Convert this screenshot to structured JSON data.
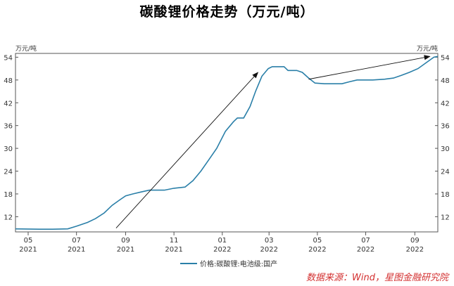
{
  "source": "数据来源：Wind，星图金融研究院",
  "chart_data": {
    "type": "line",
    "title": "碳酸锂价格走势（万元/吨）",
    "unit_left": "万元/吨",
    "unit_right": "万元/吨",
    "ylim": [
      8,
      55
    ],
    "yticks": [
      12,
      18,
      24,
      30,
      36,
      42,
      48,
      54
    ],
    "xlim": [
      "2021-04-15",
      "2022-09-30"
    ],
    "xticks": [
      {
        "date": "2021-05-01",
        "month": "05",
        "year": "2021"
      },
      {
        "date": "2021-07-01",
        "month": "07",
        "year": "2021"
      },
      {
        "date": "2021-09-01",
        "month": "09",
        "year": "2021"
      },
      {
        "date": "2021-11-01",
        "month": "11",
        "year": "2021"
      },
      {
        "date": "2022-01-01",
        "month": "01",
        "year": "2022"
      },
      {
        "date": "2022-03-01",
        "month": "03",
        "year": "2022"
      },
      {
        "date": "2022-05-01",
        "month": "05",
        "year": "2022"
      },
      {
        "date": "2022-07-01",
        "month": "07",
        "year": "2022"
      },
      {
        "date": "2022-09-01",
        "month": "09",
        "year": "2022"
      }
    ],
    "legend_position": "bottom",
    "series": [
      {
        "name": "价格:碳酸锂:电池级:国产",
        "color": "#2a7fa8",
        "points": [
          [
            "2021-04-15",
            8.8
          ],
          [
            "2021-05-15",
            8.7
          ],
          [
            "2021-06-01",
            8.7
          ],
          [
            "2021-06-20",
            8.8
          ],
          [
            "2021-07-01",
            9.5
          ],
          [
            "2021-07-15",
            10.5
          ],
          [
            "2021-07-25",
            11.5
          ],
          [
            "2021-08-05",
            13.0
          ],
          [
            "2021-08-15",
            15.0
          ],
          [
            "2021-08-25",
            16.5
          ],
          [
            "2021-09-01",
            17.5
          ],
          [
            "2021-09-10",
            18.0
          ],
          [
            "2021-09-20",
            18.5
          ],
          [
            "2021-10-01",
            19.0
          ],
          [
            "2021-10-20",
            19.0
          ],
          [
            "2021-11-01",
            19.5
          ],
          [
            "2021-11-15",
            19.8
          ],
          [
            "2021-11-25",
            21.5
          ],
          [
            "2021-12-05",
            24.0
          ],
          [
            "2021-12-15",
            27.0
          ],
          [
            "2021-12-25",
            30.0
          ],
          [
            "2022-01-05",
            34.5
          ],
          [
            "2022-01-15",
            37.0
          ],
          [
            "2022-01-20",
            38.0
          ],
          [
            "2022-01-28",
            38.0
          ],
          [
            "2022-02-05",
            41.0
          ],
          [
            "2022-02-12",
            45.0
          ],
          [
            "2022-02-20",
            49.0
          ],
          [
            "2022-02-28",
            51.0
          ],
          [
            "2022-03-05",
            51.5
          ],
          [
            "2022-03-20",
            51.5
          ],
          [
            "2022-03-25",
            50.5
          ],
          [
            "2022-04-05",
            50.5
          ],
          [
            "2022-04-12",
            50.0
          ],
          [
            "2022-04-20",
            48.5
          ],
          [
            "2022-04-28",
            47.2
          ],
          [
            "2022-05-10",
            47.0
          ],
          [
            "2022-06-01",
            47.0
          ],
          [
            "2022-06-10",
            47.5
          ],
          [
            "2022-06-20",
            48.0
          ],
          [
            "2022-07-10",
            48.0
          ],
          [
            "2022-07-25",
            48.2
          ],
          [
            "2022-08-05",
            48.5
          ],
          [
            "2022-08-15",
            49.2
          ],
          [
            "2022-08-25",
            50.0
          ],
          [
            "2022-09-05",
            51.0
          ],
          [
            "2022-09-15",
            52.5
          ],
          [
            "2022-09-25",
            54.0
          ],
          [
            "2022-09-30",
            54.2
          ]
        ]
      }
    ],
    "annotations": [
      {
        "type": "arrow",
        "from": [
          "2021-08-20",
          9.0
        ],
        "to": [
          "2022-02-15",
          50.0
        ]
      },
      {
        "type": "arrow",
        "from": [
          "2022-04-20",
          48.2
        ],
        "to": [
          "2022-09-20",
          54.2
        ]
      }
    ]
  }
}
